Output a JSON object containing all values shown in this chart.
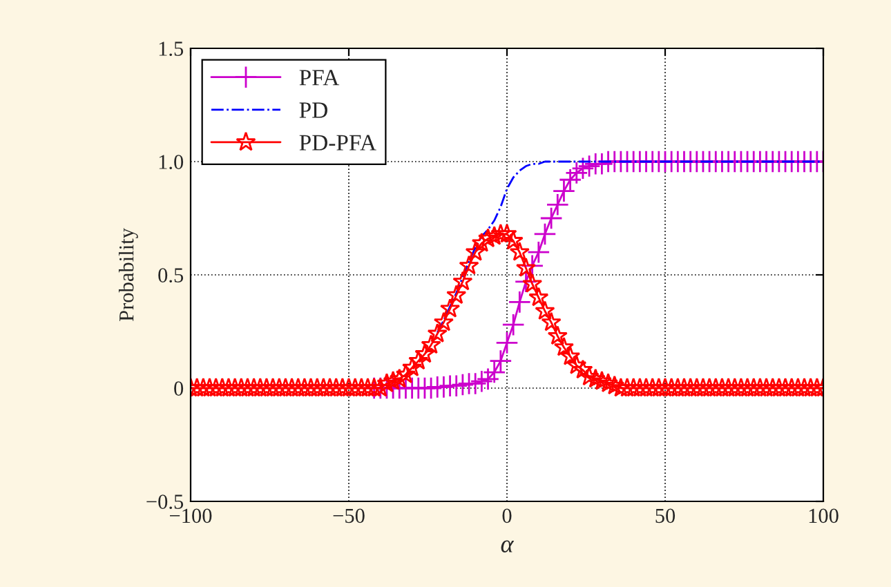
{
  "chart_data": {
    "type": "line",
    "xlabel": "α",
    "ylabel": "Probability",
    "x": [
      -100,
      -98,
      -96,
      -94,
      -92,
      -90,
      -88,
      -86,
      -84,
      -82,
      -80,
      -78,
      -76,
      -74,
      -72,
      -70,
      -68,
      -66,
      -64,
      -62,
      -60,
      -58,
      -56,
      -54,
      -52,
      -50,
      -48,
      -46,
      -44,
      -42,
      -40,
      -38,
      -36,
      -34,
      -32,
      -30,
      -28,
      -26,
      -24,
      -22,
      -20,
      -18,
      -16,
      -14,
      -12,
      -10,
      -8,
      -6,
      -4,
      -2,
      0,
      2,
      4,
      6,
      8,
      10,
      12,
      14,
      16,
      18,
      20,
      22,
      24,
      26,
      28,
      30,
      32,
      34,
      36,
      38,
      40,
      42,
      44,
      46,
      48,
      50,
      52,
      54,
      56,
      58,
      60,
      62,
      64,
      66,
      68,
      70,
      72,
      74,
      76,
      78,
      80,
      82,
      84,
      86,
      88,
      90,
      92,
      94,
      96,
      98,
      100
    ],
    "series": [
      {
        "name": "PFA",
        "color": "#cc00cc",
        "marker": "cross",
        "line_style": "solid",
        "values": [
          null,
          null,
          null,
          null,
          null,
          null,
          null,
          null,
          null,
          null,
          null,
          null,
          null,
          null,
          null,
          null,
          null,
          null,
          null,
          null,
          null,
          null,
          null,
          null,
          null,
          null,
          null,
          null,
          null,
          0,
          0,
          0,
          0,
          0,
          0,
          0,
          0,
          0,
          0,
          0.005,
          0.005,
          0.01,
          0.01,
          0.015,
          0.02,
          0.02,
          0.03,
          0.04,
          0.07,
          0.12,
          0.2,
          0.28,
          0.38,
          0.47,
          0.54,
          0.6,
          0.68,
          0.75,
          0.81,
          0.87,
          0.92,
          0.95,
          0.97,
          0.98,
          0.99,
          0.99,
          1,
          1,
          1,
          1,
          1,
          1,
          1,
          1,
          1,
          1,
          1,
          1,
          1,
          1,
          1,
          1,
          1,
          1,
          1,
          1,
          1,
          1,
          1,
          1,
          1,
          1,
          1,
          1,
          1,
          1,
          1,
          1,
          1,
          1,
          1
        ]
      },
      {
        "name": "PD",
        "color": "#0000ff",
        "marker": "none",
        "line_style": "dashdot",
        "x": [
          -22,
          -20,
          -18,
          -16,
          -14,
          -12,
          -10,
          -8,
          -6,
          -4,
          -2,
          0,
          2,
          4,
          6,
          8,
          10,
          12,
          100
        ],
        "values": [
          0.245,
          0.3,
          0.36,
          0.42,
          0.49,
          0.56,
          0.62,
          0.67,
          0.7,
          0.74,
          0.8,
          0.88,
          0.93,
          0.96,
          0.98,
          0.99,
          0.99,
          1,
          1
        ]
      },
      {
        "name": "PD-PFA",
        "color": "#ff0000",
        "marker": "star",
        "line_style": "solid",
        "values": [
          0,
          0,
          0,
          0,
          0,
          0,
          0,
          0,
          0,
          0,
          0,
          0,
          0,
          0,
          0,
          0,
          0,
          0,
          0,
          0,
          0,
          0,
          0,
          0,
          0,
          0,
          0,
          0,
          0,
          0,
          0,
          0.02,
          0.03,
          0.04,
          0.06,
          0.09,
          0.12,
          0.15,
          0.19,
          0.24,
          0.29,
          0.35,
          0.41,
          0.47,
          0.54,
          0.6,
          0.64,
          0.66,
          0.67,
          0.68,
          0.68,
          0.65,
          0.6,
          0.53,
          0.46,
          0.4,
          0.34,
          0.29,
          0.23,
          0.18,
          0.14,
          0.1,
          0.08,
          0.05,
          0.04,
          0.03,
          0.02,
          0.01,
          0,
          0,
          0,
          0,
          0,
          0,
          0,
          0,
          0,
          0,
          0,
          0,
          0,
          0,
          0,
          0,
          0,
          0,
          0,
          0,
          0,
          0,
          0,
          0,
          0,
          0,
          0,
          0,
          0,
          0,
          0,
          0,
          0
        ]
      }
    ],
    "xlim": [
      -100,
      100
    ],
    "xticks": [
      {
        "value": -100,
        "label": "−100"
      },
      {
        "value": -50,
        "label": "−50"
      },
      0,
      50,
      100
    ],
    "ylim": [
      -0.5,
      1.5
    ],
    "yticks": [
      {
        "value": -0.5,
        "label": "−0.5"
      },
      0,
      0.5,
      {
        "value": 1,
        "label": "1.0"
      },
      1.5
    ],
    "grid": true,
    "legend": "top left"
  }
}
